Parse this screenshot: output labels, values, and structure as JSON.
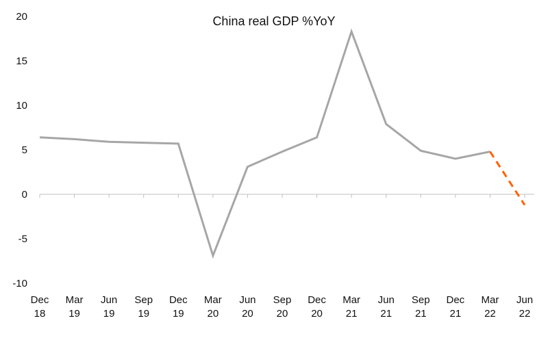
{
  "chart_data": {
    "type": "line",
    "title": "China real GDP %YoY",
    "xlabel": "",
    "ylabel": "",
    "ylim": [
      -10,
      20
    ],
    "yticks": [
      "20",
      "15",
      "10",
      "5",
      "0",
      "-5",
      "-10"
    ],
    "categories": [
      [
        "Dec",
        "18"
      ],
      [
        "Mar",
        "19"
      ],
      [
        "Jun",
        "19"
      ],
      [
        "Sep",
        "19"
      ],
      [
        "Dec",
        "19"
      ],
      [
        "Mar",
        "20"
      ],
      [
        "Jun",
        "20"
      ],
      [
        "Sep",
        "20"
      ],
      [
        "Dec",
        "20"
      ],
      [
        "Mar",
        "21"
      ],
      [
        "Jun",
        "21"
      ],
      [
        "Sep",
        "21"
      ],
      [
        "Dec",
        "21"
      ],
      [
        "Mar",
        "22"
      ],
      [
        "Jun",
        "22"
      ]
    ],
    "grid": false,
    "series": [
      {
        "style": "solid",
        "color": "#a6a6a6",
        "values": [
          6.4,
          6.2,
          5.9,
          5.8,
          5.7,
          -6.9,
          3.1,
          4.8,
          6.4,
          18.3,
          7.9,
          4.9,
          4.0,
          4.8,
          null
        ]
      },
      {
        "style": "dashed",
        "color": "#ff6200",
        "values": [
          null,
          null,
          null,
          null,
          null,
          null,
          null,
          null,
          null,
          null,
          null,
          null,
          null,
          4.8,
          -1.2
        ]
      }
    ]
  }
}
